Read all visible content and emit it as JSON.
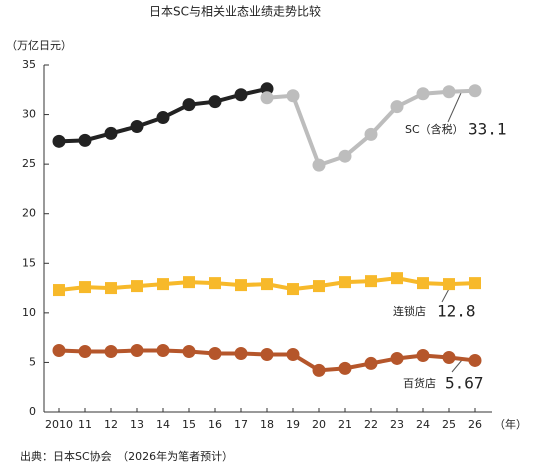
{
  "chart_data": {
    "type": "line",
    "title": "日本SC与相关业态业绩走势比较",
    "y_label": "（万亿日元）",
    "x_label": "（年）",
    "source": "出典：日本SC协会　（2026年为笔者预计）",
    "categories": [
      "2010",
      "11",
      "12",
      "13",
      "14",
      "15",
      "16",
      "17",
      "18",
      "19",
      "20",
      "21",
      "22",
      "23",
      "24",
      "25",
      "26"
    ],
    "ylim": [
      0,
      35
    ],
    "yticks": [
      0,
      5,
      10,
      15,
      20,
      25,
      30,
      35
    ],
    "series": [
      {
        "color": "#222222",
        "marker": "circle",
        "values": [
          27.3,
          27.4,
          28.1,
          28.8,
          29.7,
          31.0,
          31.3,
          32.0,
          32.6,
          null,
          null,
          null,
          null,
          null,
          null,
          null,
          null
        ]
      },
      {
        "color": "#bdbdbd",
        "marker": "circle",
        "values": [
          null,
          null,
          null,
          null,
          null,
          null,
          null,
          null,
          31.7,
          31.9,
          24.9,
          25.8,
          28.0,
          30.8,
          32.1,
          32.3,
          32.4
        ]
      },
      {
        "color": "#f7b92a",
        "marker": "square",
        "values": [
          12.3,
          12.6,
          12.5,
          12.7,
          12.9,
          13.1,
          13.0,
          12.8,
          12.9,
          12.4,
          12.7,
          13.1,
          13.2,
          13.5,
          13.0,
          12.9,
          13.0
        ]
      },
      {
        "color": "#b5562b",
        "marker": "circle",
        "values": [
          6.2,
          6.1,
          6.1,
          6.2,
          6.2,
          6.1,
          5.9,
          5.9,
          5.8,
          5.8,
          4.2,
          4.4,
          4.9,
          5.4,
          5.7,
          5.5,
          5.2
        ]
      }
    ],
    "annotations": [
      "SC（含税）",
      "33.1",
      "连锁店",
      "12.8",
      "百货店",
      "5.67"
    ]
  }
}
